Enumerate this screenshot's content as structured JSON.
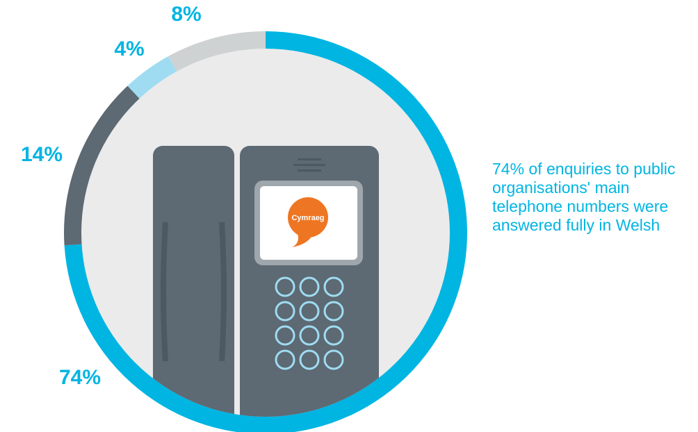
{
  "chart_data": {
    "type": "donut",
    "categories": [
      null,
      null,
      null,
      null
    ],
    "values": [
      74,
      14,
      4,
      8
    ],
    "value_labels": [
      "74%",
      "14%",
      "4%",
      "8%"
    ],
    "colors": [
      "#00b5e2",
      "#5d6973",
      "#9fdcf1",
      "#cfd2d3"
    ],
    "annotation": "74% of enquiries to public organisations' main telephone numbers were answered fully in Welsh",
    "icon_text": "Cymraeg"
  }
}
